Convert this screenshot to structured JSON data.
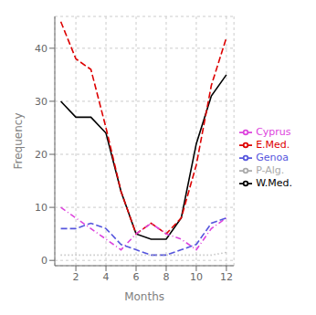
{
  "chart_data": {
    "type": "line",
    "x": [
      1,
      2,
      3,
      4,
      5,
      6,
      7,
      8,
      9,
      10,
      11,
      12
    ],
    "xlabel": "Months",
    "ylabel": "Frequency",
    "xlim": [
      0.6,
      12.5
    ],
    "ylim": [
      -1,
      46
    ],
    "xticks": [
      2,
      4,
      6,
      8,
      10,
      12
    ],
    "yticks": [
      0,
      10,
      20,
      30,
      40
    ],
    "grid": true,
    "legend": "right",
    "series": [
      {
        "name": "W.Med.",
        "color": "#000000",
        "line_style": "solid",
        "values": [
          30,
          27,
          27,
          24,
          13,
          5,
          4,
          4,
          8,
          22,
          31,
          35
        ]
      },
      {
        "name": "E.Med.",
        "color": "#dd0000",
        "line_style": "dashed",
        "values": [
          45,
          38,
          36,
          25,
          13,
          5,
          7,
          5,
          8,
          18,
          33,
          42
        ]
      },
      {
        "name": "Cyprus",
        "color": "#dd44dd",
        "line_style": "dashdot",
        "values": [
          10,
          8,
          6,
          4,
          2,
          5,
          7,
          5,
          4,
          2,
          6,
          8
        ]
      },
      {
        "name": "Genoa",
        "color": "#5555dd",
        "line_style": "dashed",
        "values": [
          6,
          6,
          7,
          6,
          3,
          2,
          1,
          1,
          2,
          3,
          7,
          8
        ]
      },
      {
        "name": "P-Alg.",
        "color": "#aaaaaa",
        "line_style": "dotted",
        "values": [
          1,
          1,
          1,
          1,
          1,
          1,
          1,
          1,
          1,
          1,
          1,
          1.5
        ]
      }
    ]
  }
}
